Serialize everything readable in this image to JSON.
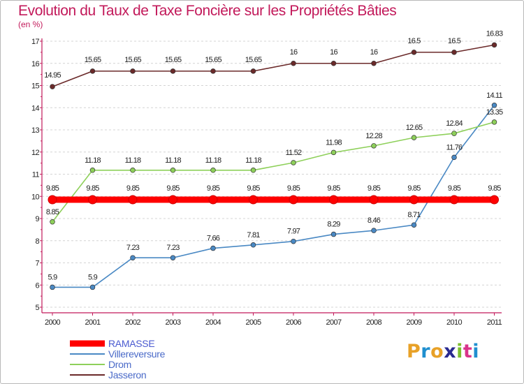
{
  "header": {
    "title": "Evolution du Taux de Taxe Foncière sur les Propriétés Bâties",
    "unit": "(en %)"
  },
  "logo": {
    "text": "Proxiti",
    "letter_colors": [
      "#e8a127",
      "#1f8fcf",
      "#e8a127",
      "#2a2a8f",
      "#7bbf2e",
      "#d9348b",
      "#1f8fcf"
    ]
  },
  "chart_data": {
    "type": "line",
    "title": "Evolution du Taux de Taxe Foncière sur les Propriétés Bâties",
    "ylabel": "(en %)",
    "xlabel": "",
    "x": [
      "2000",
      "2001",
      "2002",
      "2003",
      "2004",
      "2005",
      "2006",
      "2007",
      "2008",
      "2009",
      "2010",
      "2011"
    ],
    "y_ticks": [
      5,
      6,
      7,
      8,
      9,
      10,
      11,
      12,
      13,
      14,
      15,
      16,
      17
    ],
    "ylim": [
      5,
      17
    ],
    "grid": "horizontal dashed",
    "legend_position": "bottom-left",
    "series": [
      {
        "name": "RAMASSE",
        "color": "#ff0000",
        "values": [
          9.85,
          9.85,
          9.85,
          9.85,
          9.85,
          9.85,
          9.85,
          9.85,
          9.85,
          9.85,
          9.85,
          9.85
        ],
        "labels": [
          "9.85",
          "9.85",
          "9.85",
          "9.85",
          "9.85",
          "9.85",
          "9.85",
          "9.85",
          "9.85",
          "9.85",
          "9.85",
          "9.85"
        ]
      },
      {
        "name": "Villereversure",
        "color": "#4a89c4",
        "values": [
          5.9,
          5.9,
          7.23,
          7.23,
          7.66,
          7.81,
          7.97,
          8.29,
          8.46,
          8.71,
          11.76,
          14.11
        ],
        "labels": [
          "5.9",
          "5.9",
          "7.23",
          "7.23",
          "7.66",
          "7.81",
          "7.97",
          "8.29",
          "8.46",
          "8.71",
          "11.76",
          "14.11"
        ]
      },
      {
        "name": "Drom",
        "color": "#8ed05a",
        "values": [
          8.85,
          11.18,
          11.18,
          11.18,
          11.18,
          11.18,
          11.52,
          11.98,
          12.28,
          12.65,
          12.84,
          13.35
        ],
        "labels": [
          "8.85",
          "11.18",
          "11.18",
          "11.18",
          "11.18",
          "11.18",
          "11.52",
          "11.98",
          "12.28",
          "12.65",
          "12.84",
          "13.35"
        ]
      },
      {
        "name": "Jasseron",
        "color": "#6b2a2a",
        "values": [
          14.95,
          15.65,
          15.65,
          15.65,
          15.65,
          15.65,
          16,
          16,
          16,
          16.5,
          16.5,
          16.83
        ],
        "labels": [
          "14.95",
          "15.65",
          "15.65",
          "15.65",
          "15.65",
          "15.65",
          "16",
          "16",
          "16",
          "16.5",
          "16.5",
          "16.83"
        ]
      }
    ]
  }
}
